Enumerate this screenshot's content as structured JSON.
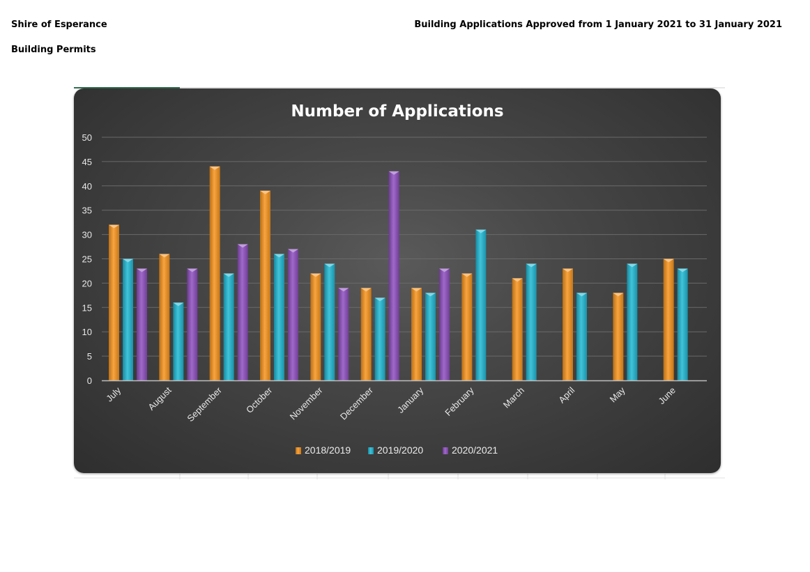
{
  "header": {
    "organisation": "Shire of Esperance",
    "section": "Building Permits",
    "report_title": "Building Applications Approved from 1 January 2021 to 31 January 2021"
  },
  "chart_data": {
    "type": "bar",
    "title": "Number of Applications",
    "xlabel": "",
    "ylabel": "",
    "ylim": [
      0,
      50
    ],
    "yticks": [
      0,
      5,
      10,
      15,
      20,
      25,
      30,
      35,
      40,
      45,
      50
    ],
    "grid": true,
    "legend_position": "bottom",
    "categories": [
      "July",
      "August",
      "September",
      "October",
      "November",
      "December",
      "January",
      "February",
      "March",
      "April",
      "May",
      "June"
    ],
    "series": [
      {
        "name": "2018/2019",
        "color": "#f7941d",
        "values": [
          32,
          26,
          44,
          39,
          22,
          19,
          19,
          22,
          21,
          23,
          18,
          25
        ]
      },
      {
        "name": "2019/2020",
        "color": "#1fb8d4",
        "values": [
          25,
          16,
          22,
          26,
          24,
          17,
          18,
          31,
          24,
          18,
          24,
          23
        ]
      },
      {
        "name": "2020/2021",
        "color": "#8e4fbf",
        "values": [
          23,
          23,
          28,
          27,
          19,
          43,
          23,
          null,
          null,
          null,
          null,
          null
        ]
      }
    ],
    "background_color": "#3c3c3c",
    "text_color": "#ffffff"
  }
}
